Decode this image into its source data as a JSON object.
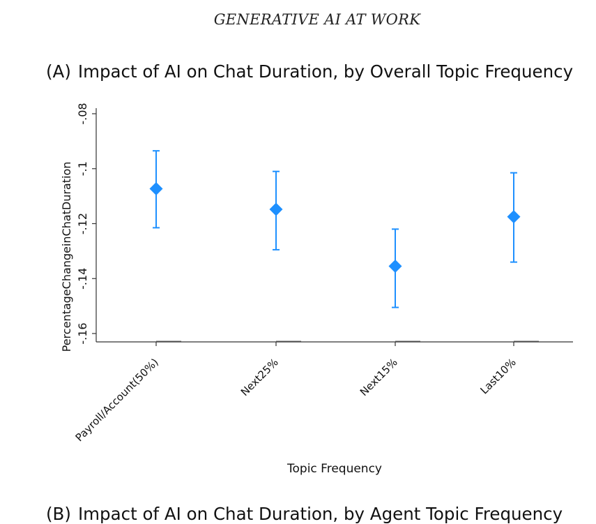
{
  "header": {
    "running_title": "GENERATIVE AI AT WORK"
  },
  "panel_a": {
    "label": "(A)",
    "title": "Impact of AI on Chat Duration, by Overall Topic Frequency"
  },
  "panel_b": {
    "label": "(B)",
    "title": "Impact of AI on Chat Duration, by Agent Topic Frequency"
  },
  "colors": {
    "marker": "#1e90ff",
    "axis": "#333333",
    "text": "#111111"
  },
  "chart_data": {
    "type": "scatter",
    "title": "Impact of AI on Chat Duration, by Overall Topic Frequency",
    "xlabel": "Topic Frequency",
    "ylabel": "PercentageChangeinChatDuration",
    "categories": [
      "Payroll/Account(50%)",
      "Next25%",
      "Next15%",
      "Last10%"
    ],
    "series": [
      {
        "values": [
          -0.1073,
          -0.1148,
          -0.1355,
          -0.1175
        ],
        "ci_low": [
          -0.1215,
          -0.1295,
          -0.1505,
          -0.134
        ],
        "ci_high": [
          -0.0935,
          -0.101,
          -0.122,
          -0.1015
        ]
      }
    ],
    "yticks": [
      -0.16,
      -0.14,
      -0.12,
      -0.1,
      -0.08
    ],
    "ytick_labels": [
      "-.16",
      "-.14",
      "-.12",
      "-.1",
      "-.08"
    ],
    "ylim": [
      -0.163,
      -0.08
    ],
    "grid": false,
    "legend": "none"
  }
}
